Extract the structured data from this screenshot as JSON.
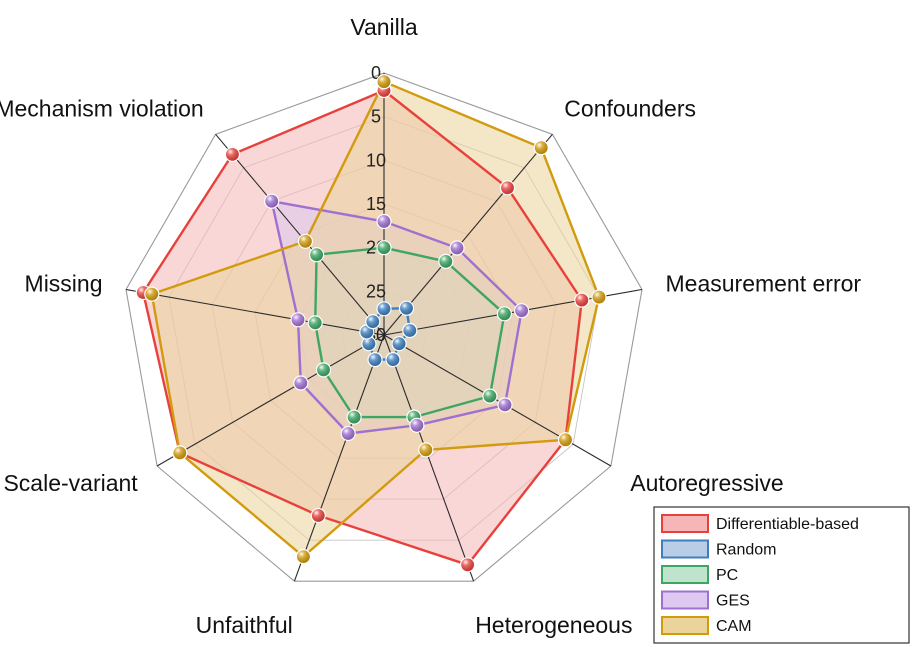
{
  "chart_data": {
    "type": "radar",
    "title": "",
    "axes": [
      "Vanilla",
      "Confounders",
      "Measurement error",
      "Autoregressive",
      "Heterogeneous",
      "Unfaithful",
      "Scale-variant",
      "Missing",
      "Mechanism violation"
    ],
    "radial_ticks": [
      "0",
      "5",
      "10",
      "15",
      "20",
      "25",
      "30"
    ],
    "radial_range": [
      0,
      30
    ],
    "radial_reversed": true,
    "grid": true,
    "legend_position": "bottom-right",
    "series": [
      {
        "name": "Differentiable-based",
        "color": "#e8413c",
        "fill": "#f4b6b6",
        "values": [
          2,
          8,
          7,
          6,
          2,
          8,
          3,
          2,
          3
        ]
      },
      {
        "name": "Random",
        "color": "#3f7fbf",
        "fill": "#b9cde6",
        "values": [
          27,
          26,
          27,
          28,
          27,
          27,
          28,
          28,
          28
        ]
      },
      {
        "name": "PC",
        "color": "#3ea663",
        "fill": "#bfe3cc",
        "values": [
          20,
          19,
          16,
          16,
          20,
          20,
          22,
          22,
          18
        ]
      },
      {
        "name": "GES",
        "color": "#a070d0",
        "fill": "#ddc8ef",
        "values": [
          17,
          17,
          14,
          14,
          19,
          18,
          19,
          20,
          10
        ]
      },
      {
        "name": "CAM",
        "color": "#d29b0d",
        "fill": "#ead49b",
        "values": [
          1,
          2,
          5,
          6,
          16,
          3,
          3,
          3,
          16
        ]
      }
    ]
  }
}
